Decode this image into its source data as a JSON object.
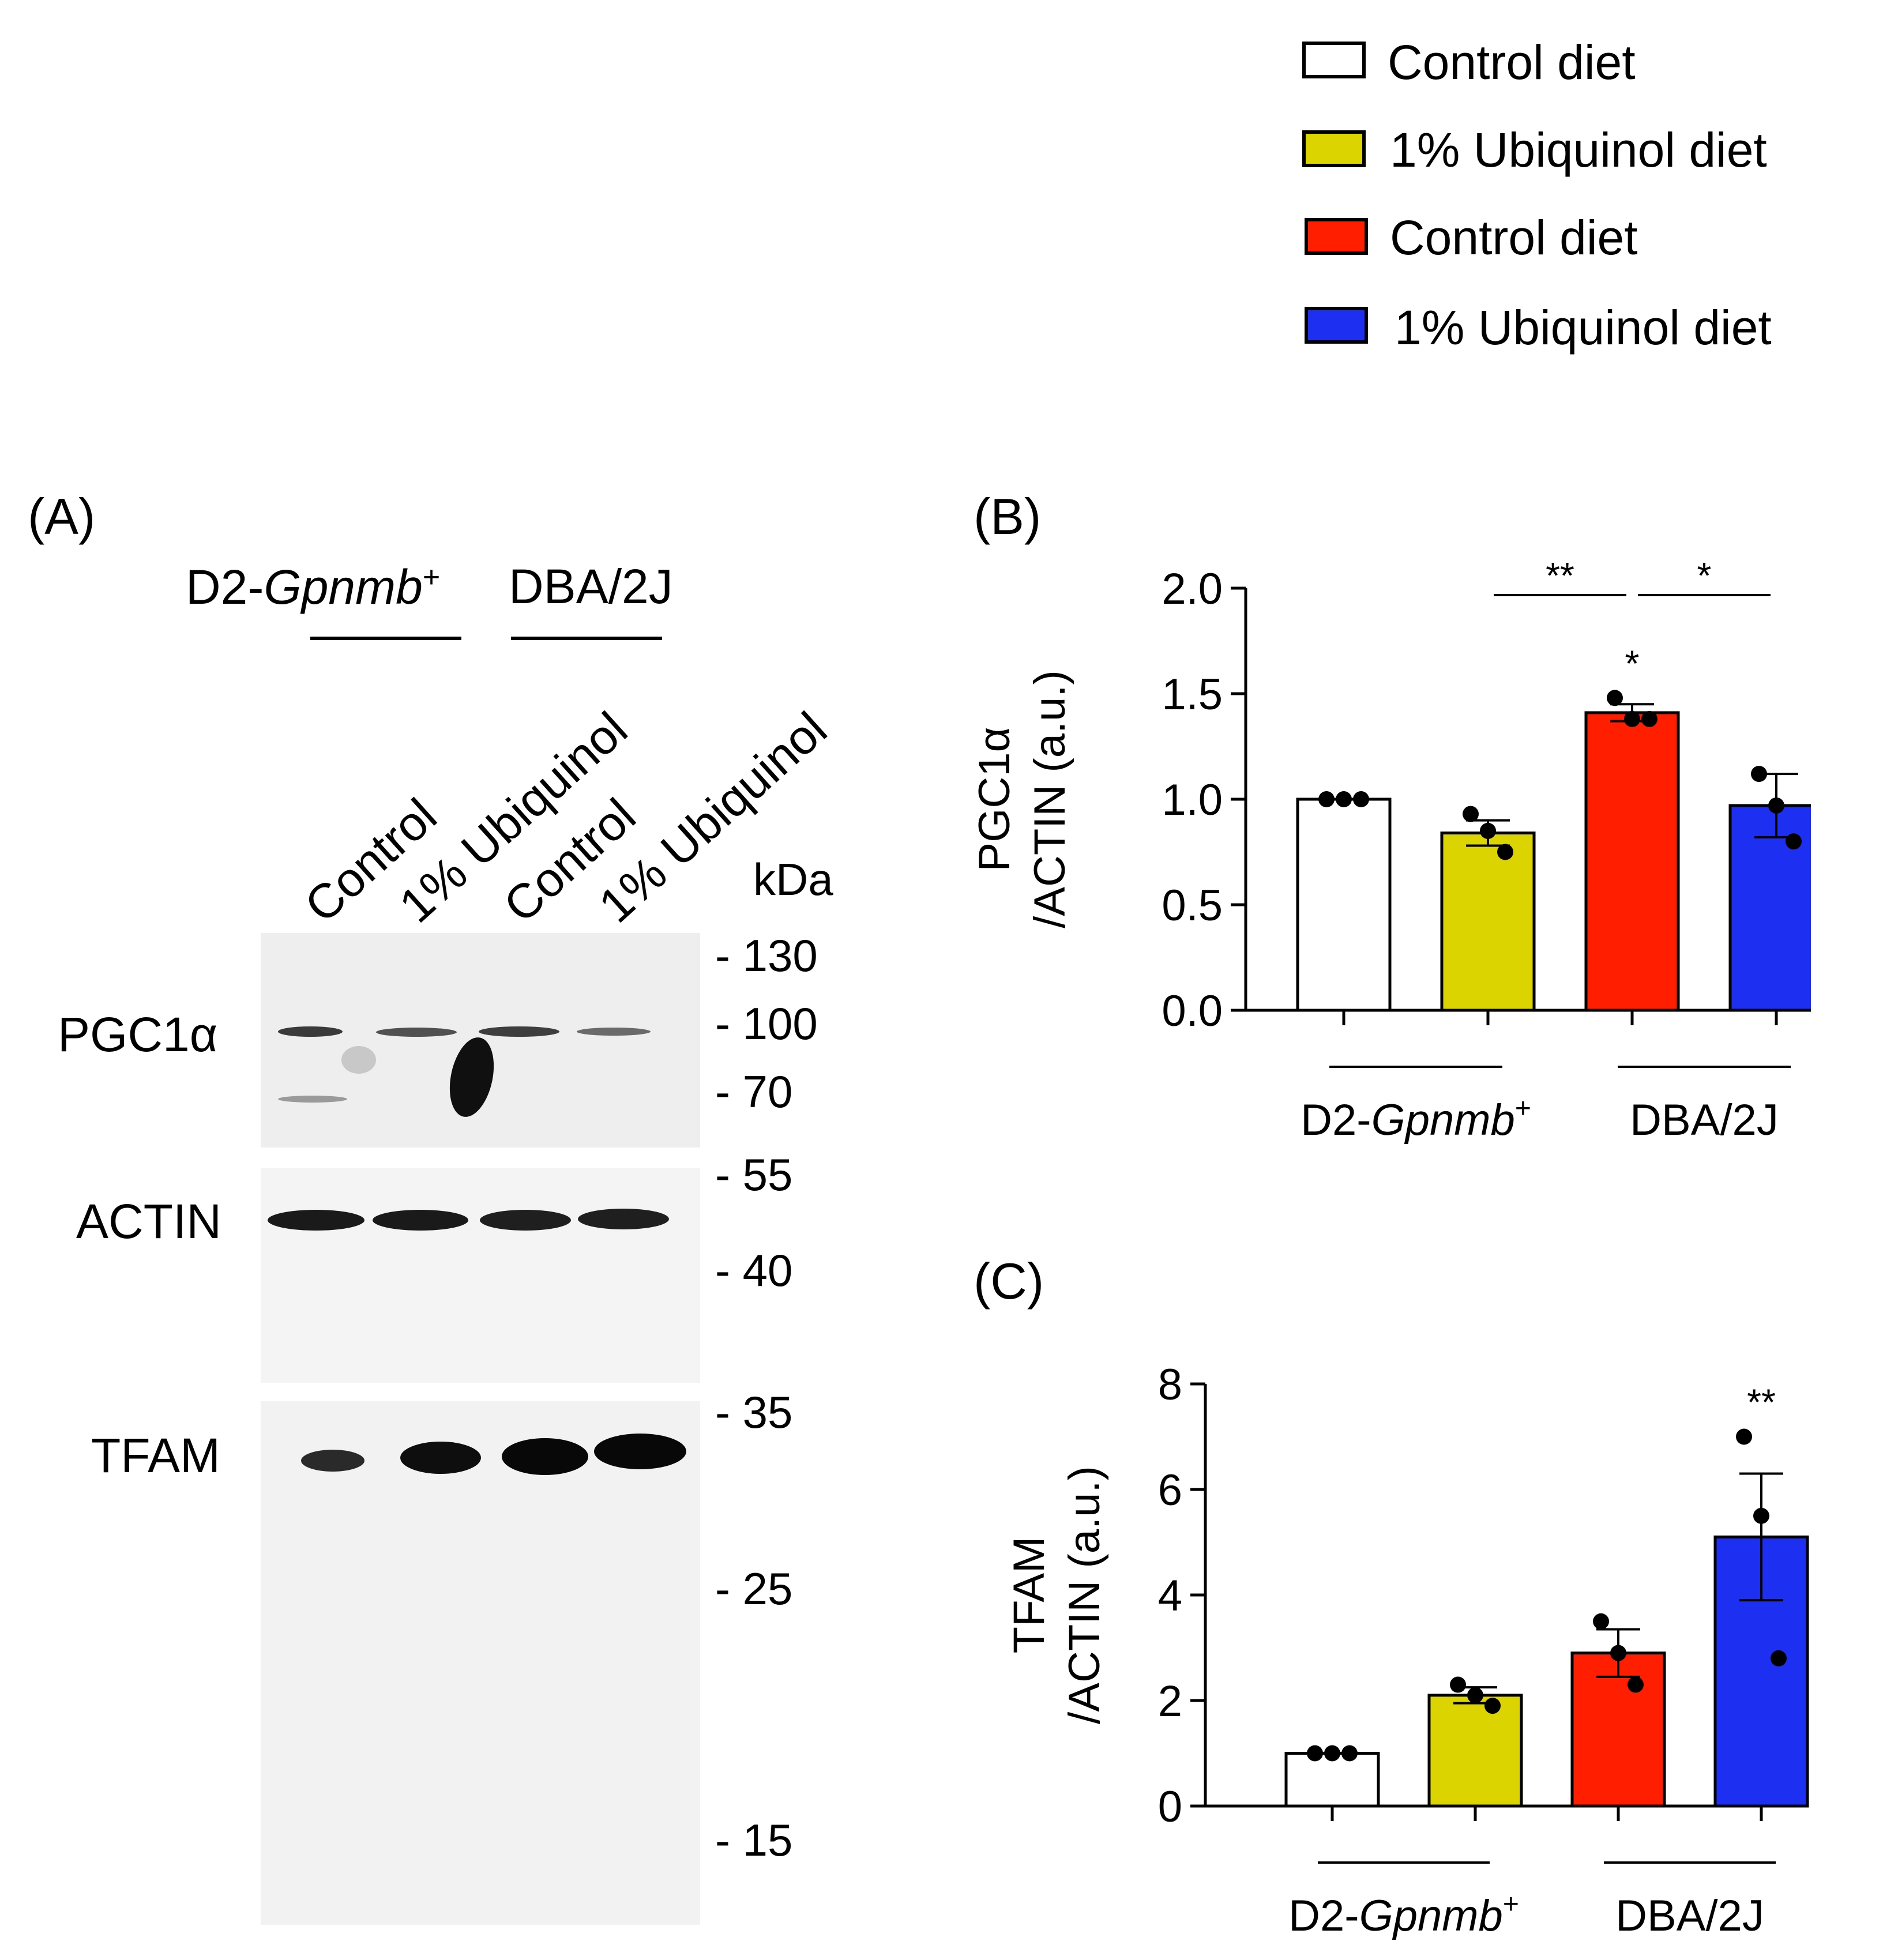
{
  "legend": [
    {
      "label": "Control diet",
      "color": "#ffffff"
    },
    {
      "label": "1% Ubiquinol diet",
      "color": "#dcd400"
    },
    {
      "label": "Control diet",
      "color": "#ff1e00"
    },
    {
      "label": "1% Ubiquinol diet",
      "color": "#1d2ff0"
    }
  ],
  "panel_a": {
    "label": "(A)",
    "strain1_prefix": "D2-",
    "strain1_gene": "Gpnmb",
    "strain1_sup": "+",
    "strain2": "DBA/2J",
    "lanes": [
      "Control",
      "1% Ubiquinol",
      "Control",
      "1% Ubiquinol"
    ],
    "kda_label": "kDa",
    "rows": [
      "PGC1α",
      "ACTIN",
      "TFAM"
    ],
    "markers": [
      "- 130",
      "- 100",
      "- 70",
      "- 55",
      "- 40",
      "- 35",
      "- 25",
      "- 15"
    ]
  },
  "chart_data": [
    {
      "panel": "(B)",
      "type": "bar",
      "categories": [
        "Control diet",
        "1% Ubiquinol diet",
        "Control diet",
        "1% Ubiquinol diet"
      ],
      "group_labels": [
        {
          "prefix": "D2-",
          "gene": "Gpnmb",
          "sup": "+"
        },
        {
          "prefix": "DBA/2J",
          "gene": "",
          "sup": ""
        }
      ],
      "values": [
        1.0,
        0.84,
        1.41,
        0.97
      ],
      "sem": [
        0.0,
        0.06,
        0.04,
        0.15
      ],
      "points": [
        [
          1.0,
          1.0,
          1.0
        ],
        [
          0.93,
          0.85,
          0.75
        ],
        [
          1.48,
          1.38,
          1.38
        ],
        [
          1.12,
          0.97,
          0.8
        ]
      ],
      "colors": [
        "#ffffff",
        "#dcd400",
        "#ff1e00",
        "#1d2ff0"
      ],
      "ylabel_line1": "PGC1α",
      "ylabel_line2": "/ACTIN (a.u.)",
      "ylim": [
        0,
        2.0
      ],
      "yticks": [
        "0.0",
        "0.5",
        "1.0",
        "1.5",
        "2.0"
      ],
      "annotations": [
        {
          "text": "**",
          "from_bar": 1,
          "to_bar": 2,
          "type": "bracket"
        },
        {
          "text": "*",
          "from_bar": 2,
          "to_bar": 3,
          "type": "bracket"
        },
        {
          "text": "*",
          "bar": 2,
          "type": "above"
        }
      ]
    },
    {
      "panel": "(C)",
      "type": "bar",
      "categories": [
        "Control diet",
        "1% Ubiquinol diet",
        "Control diet",
        "1% Ubiquinol diet"
      ],
      "group_labels": [
        {
          "prefix": "D2-",
          "gene": "Gpnmb",
          "sup": "+"
        },
        {
          "prefix": "DBA/2J",
          "gene": "",
          "sup": ""
        }
      ],
      "values": [
        1.0,
        2.1,
        2.9,
        5.1
      ],
      "sem": [
        0.0,
        0.15,
        0.45,
        1.2
      ],
      "points": [
        [
          1.0,
          1.0,
          1.0
        ],
        [
          2.3,
          2.1,
          1.9
        ],
        [
          3.5,
          2.9,
          2.3
        ],
        [
          7.0,
          5.5,
          2.8
        ]
      ],
      "colors": [
        "#ffffff",
        "#dcd400",
        "#ff1e00",
        "#1d2ff0"
      ],
      "ylabel_line1": "TFAM",
      "ylabel_line2": "/ACTIN (a.u.)",
      "ylim": [
        0,
        8
      ],
      "yticks": [
        "0",
        "2",
        "4",
        "6",
        "8"
      ],
      "annotations": [
        {
          "text": "**",
          "bar": 3,
          "type": "above"
        }
      ]
    }
  ]
}
